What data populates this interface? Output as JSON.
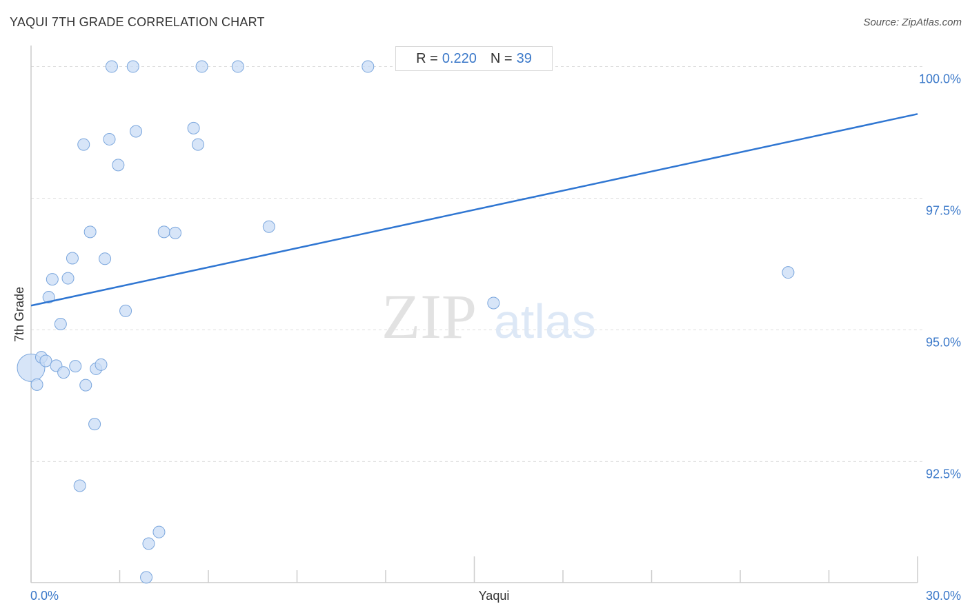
{
  "header": {
    "title": "YAQUI 7TH GRADE CORRELATION CHART",
    "source": "Source: ZipAtlas.com"
  },
  "stats": {
    "r_label": "R =",
    "r_value": "0.220",
    "n_label": "N =",
    "n_value": "39"
  },
  "watermark": {
    "zip": "ZIP",
    "atlas": "atlas"
  },
  "colors": {
    "point_fill": "#c9dcf5",
    "point_stroke": "#7aa6dd",
    "trend_line": "#2f76d2",
    "tick_label": "#3a78c9",
    "grid": "#dddddd"
  },
  "chart_data": {
    "type": "scatter",
    "title": "YAQUI 7TH GRADE CORRELATION CHART",
    "xlabel": "Yaqui",
    "ylabel": "7th Grade",
    "xlim": [
      0,
      30
    ],
    "ylim": [
      90.2,
      100.4
    ],
    "x_tick_labels": [
      {
        "value": 0,
        "label": "0.0%"
      },
      {
        "value": 30,
        "label": "30.0%"
      }
    ],
    "y_tick_labels": [
      {
        "value": 100,
        "label": "100.0%"
      },
      {
        "value": 97.5,
        "label": "97.5%"
      },
      {
        "value": 95,
        "label": "95.0%"
      },
      {
        "value": 92.5,
        "label": "92.5%"
      }
    ],
    "grid": "horizontal dashed",
    "trend_line": {
      "x": [
        0,
        30
      ],
      "y": [
        95.46,
        99.1
      ]
    },
    "points": [
      {
        "x": 0.0,
        "y": 94.28,
        "big": true
      },
      {
        "x": 0.2,
        "y": 93.96
      },
      {
        "x": 0.35,
        "y": 94.48
      },
      {
        "x": 0.5,
        "y": 94.41
      },
      {
        "x": 0.6,
        "y": 95.62
      },
      {
        "x": 0.72,
        "y": 95.96
      },
      {
        "x": 0.85,
        "y": 94.32
      },
      {
        "x": 1.0,
        "y": 95.11
      },
      {
        "x": 1.1,
        "y": 94.19
      },
      {
        "x": 1.25,
        "y": 95.98
      },
      {
        "x": 1.4,
        "y": 96.36
      },
      {
        "x": 1.5,
        "y": 94.31
      },
      {
        "x": 1.65,
        "y": 92.04
      },
      {
        "x": 1.78,
        "y": 98.52
      },
      {
        "x": 1.85,
        "y": 93.95
      },
      {
        "x": 2.0,
        "y": 96.86
      },
      {
        "x": 2.15,
        "y": 93.21
      },
      {
        "x": 2.2,
        "y": 94.26
      },
      {
        "x": 2.37,
        "y": 94.34
      },
      {
        "x": 2.5,
        "y": 96.35
      },
      {
        "x": 2.65,
        "y": 98.62
      },
      {
        "x": 2.73,
        "y": 100.0
      },
      {
        "x": 2.95,
        "y": 98.13
      },
      {
        "x": 3.2,
        "y": 95.36
      },
      {
        "x": 3.45,
        "y": 100.0
      },
      {
        "x": 3.55,
        "y": 98.77
      },
      {
        "x": 3.9,
        "y": 90.3
      },
      {
        "x": 3.98,
        "y": 90.94
      },
      {
        "x": 4.33,
        "y": 91.16
      },
      {
        "x": 4.5,
        "y": 96.86
      },
      {
        "x": 4.88,
        "y": 96.84
      },
      {
        "x": 5.5,
        "y": 98.83
      },
      {
        "x": 5.65,
        "y": 98.52
      },
      {
        "x": 5.78,
        "y": 100.0
      },
      {
        "x": 7.0,
        "y": 100.0
      },
      {
        "x": 8.05,
        "y": 96.96
      },
      {
        "x": 11.4,
        "y": 100.0
      },
      {
        "x": 15.65,
        "y": 95.51
      },
      {
        "x": 25.62,
        "y": 96.09
      }
    ]
  }
}
